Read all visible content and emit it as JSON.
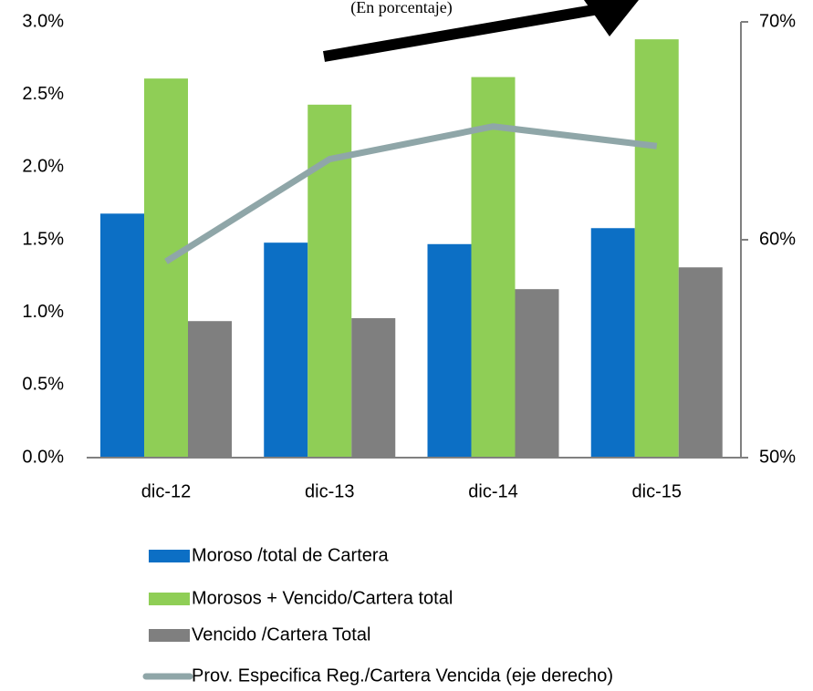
{
  "chart_data": {
    "type": "bar",
    "subtitle": "(En porcentaje)",
    "categories": [
      "dic-12",
      "dic-13",
      "dic-14",
      "dic-15"
    ],
    "series": [
      {
        "name": "Moroso /total de Cartera",
        "color": "#0c6fc5",
        "values": [
          1.68,
          1.48,
          1.47,
          1.58
        ]
      },
      {
        "name": "Morosos + Vencido/Cartera total",
        "color": "#8fce56",
        "values": [
          2.61,
          2.43,
          2.62,
          2.88
        ]
      },
      {
        "name": "Vencido /Cartera Total",
        "color": "#7f7f7f",
        "values": [
          0.94,
          0.96,
          1.16,
          1.31
        ]
      },
      {
        "name": "Prov. Especifica Reg./Cartera Vencida (eje derecho)",
        "color": "#8fa6a8",
        "type": "line",
        "axis": "y2",
        "values": [
          59.0,
          63.7,
          65.2,
          64.3
        ]
      }
    ],
    "ylim": [
      0,
      3
    ],
    "yticks": [
      {
        "value": 0,
        "label": "0.0%"
      },
      {
        "value": 0.5,
        "label": "0.5%"
      },
      {
        "value": 1,
        "label": "1.0%"
      },
      {
        "value": 1.5,
        "label": "1.5%"
      },
      {
        "value": 2,
        "label": "2.0%"
      },
      {
        "value": 2.5,
        "label": "2.5%"
      },
      {
        "value": 3,
        "label": "3.0%"
      }
    ],
    "y2lim": [
      50,
      70
    ],
    "y2ticks": [
      {
        "value": 50,
        "label": "50%"
      },
      {
        "value": 60,
        "label": "60%"
      },
      {
        "value": 70,
        "label": "70%"
      }
    ],
    "legend": "bottom"
  }
}
